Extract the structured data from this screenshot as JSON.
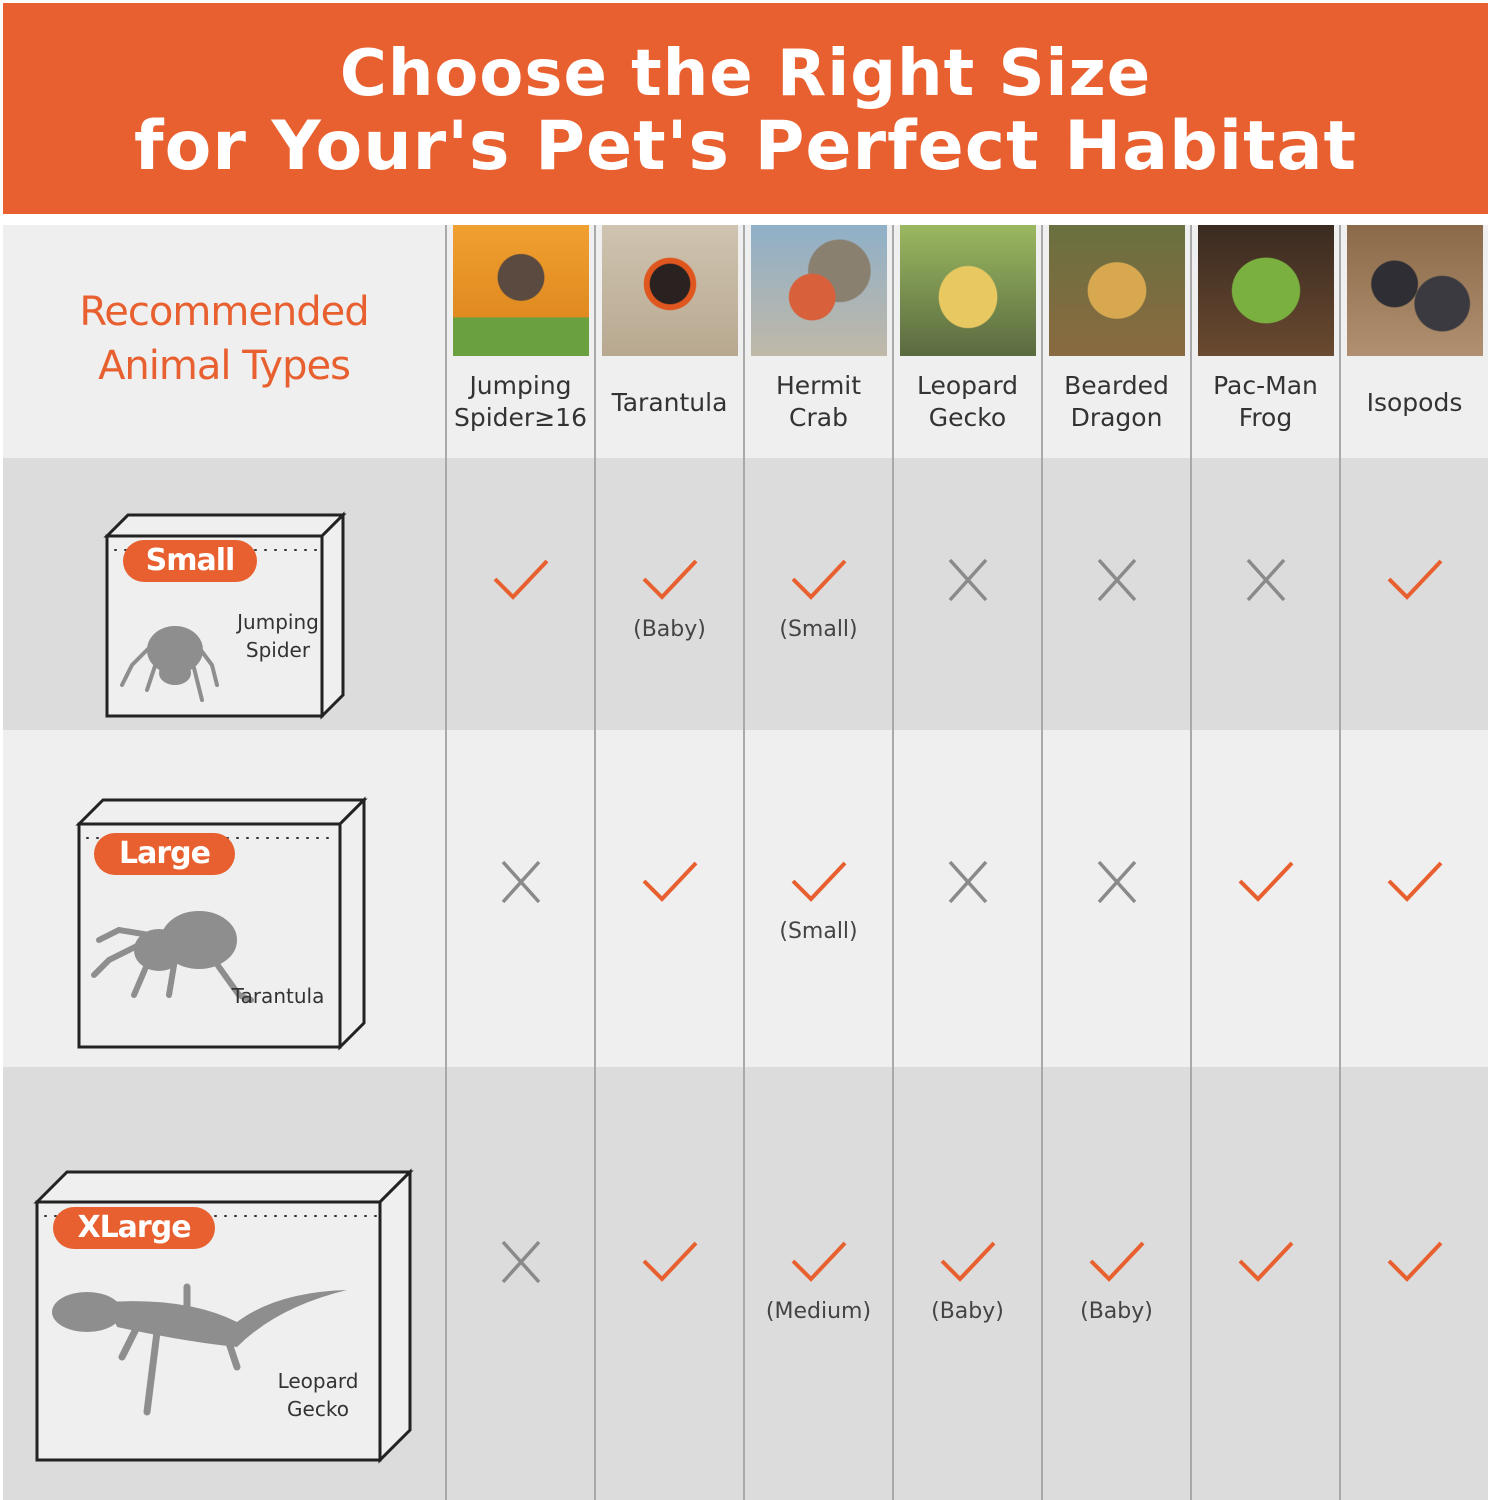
{
  "banner": {
    "line1": "Choose the Right Size",
    "line2": "for Your's Pet's Perfect Habitat"
  },
  "colors": {
    "accent": "#E8602F",
    "check": "#E8602F",
    "cross": "#8a8a8a",
    "row_dark": "#dcdcdc",
    "row_light": "#efefef"
  },
  "header": {
    "title_line1": "Recommended",
    "title_line2": "Animal Types",
    "animals": [
      {
        "line1": "Jumping",
        "line2": "Spider≥16",
        "photo": "jumping-spider-photo"
      },
      {
        "line1": "Tarantula",
        "line2": "",
        "photo": "tarantula-photo"
      },
      {
        "line1": "Hermit",
        "line2": "Crab",
        "photo": "hermit-crab-photo"
      },
      {
        "line1": "Leopard",
        "line2": "Gecko",
        "photo": "leopard-gecko-photo"
      },
      {
        "line1": "Bearded",
        "line2": "Dragon",
        "photo": "bearded-dragon-photo"
      },
      {
        "line1": "Pac-Man",
        "line2": "Frog",
        "photo": "pacman-frog-photo"
      },
      {
        "line1": "Isopods",
        "line2": "",
        "photo": "isopods-photo"
      }
    ]
  },
  "rows": [
    {
      "size": "Small",
      "animal_line1": "Jumping",
      "animal_line2": "Spider",
      "cells": [
        {
          "mark": "check",
          "note": ""
        },
        {
          "mark": "check",
          "note": "(Baby)"
        },
        {
          "mark": "check",
          "note": "(Small)"
        },
        {
          "mark": "cross",
          "note": ""
        },
        {
          "mark": "cross",
          "note": ""
        },
        {
          "mark": "cross",
          "note": ""
        },
        {
          "mark": "check",
          "note": ""
        }
      ]
    },
    {
      "size": "Large",
      "animal_line1": "Tarantula",
      "animal_line2": "",
      "cells": [
        {
          "mark": "cross",
          "note": ""
        },
        {
          "mark": "check",
          "note": ""
        },
        {
          "mark": "check",
          "note": "(Small)"
        },
        {
          "mark": "cross",
          "note": ""
        },
        {
          "mark": "cross",
          "note": ""
        },
        {
          "mark": "check",
          "note": ""
        },
        {
          "mark": "check",
          "note": ""
        }
      ]
    },
    {
      "size": "XLarge",
      "animal_line1": "Leopard",
      "animal_line2": "Gecko",
      "cells": [
        {
          "mark": "cross",
          "note": ""
        },
        {
          "mark": "check",
          "note": ""
        },
        {
          "mark": "check",
          "note": "(Medium)"
        },
        {
          "mark": "check",
          "note": "(Baby)"
        },
        {
          "mark": "check",
          "note": "(Baby)"
        },
        {
          "mark": "check",
          "note": ""
        },
        {
          "mark": "check",
          "note": ""
        }
      ]
    }
  ]
}
